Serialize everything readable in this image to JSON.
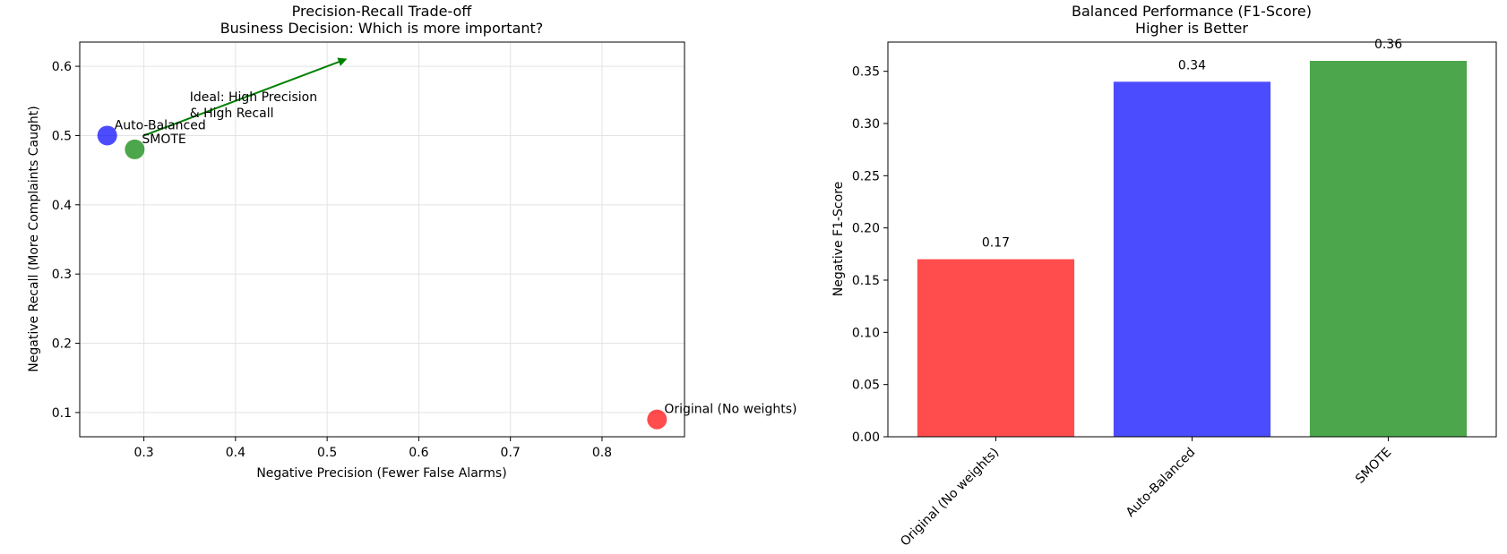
{
  "chart_data": [
    {
      "type": "scatter",
      "title": "Precision-Recall Trade-off",
      "subtitle": "Business Decision: Which is more important?",
      "xlabel": "Negative Precision (Fewer False Alarms)",
      "ylabel": "Negative Recall (More Complaints Caught)",
      "xlim": [
        0.23,
        0.89
      ],
      "ylim": [
        0.065,
        0.635
      ],
      "xticks": [
        "0.3",
        "0.4",
        "0.5",
        "0.6",
        "0.7",
        "0.8"
      ],
      "yticks": [
        "0.1",
        "0.2",
        "0.3",
        "0.4",
        "0.5",
        "0.6"
      ],
      "grid": true,
      "points": [
        {
          "label": "Original (No weights)",
          "x": 0.86,
          "y": 0.09,
          "color": "#ff0000"
        },
        {
          "label": "Auto-Balanced",
          "x": 0.26,
          "y": 0.5,
          "color": "#0000ff"
        },
        {
          "label": "SMOTE",
          "x": 0.29,
          "y": 0.48,
          "color": "#008000"
        }
      ],
      "annotation": {
        "line1": "Ideal: High Precision",
        "line2": "& High Recall",
        "color": "#008000",
        "arrow_from": [
          0.3,
          0.5
        ],
        "arrow_to": [
          0.52,
          0.61
        ]
      }
    },
    {
      "type": "bar",
      "title": "Balanced Performance (F1-Score)",
      "subtitle": "Higher is Better",
      "xlabel": "",
      "ylabel": "Negative F1-Score",
      "categories": [
        "Original (No weights)",
        "Auto-Balanced",
        "SMOTE"
      ],
      "values": [
        0.17,
        0.34,
        0.36
      ],
      "value_labels": [
        "0.17",
        "0.34",
        "0.36"
      ],
      "colors": [
        "#ff0000",
        "#0000ff",
        "#008000"
      ],
      "ylim": [
        0,
        0.378
      ],
      "yticks": [
        "0.00",
        "0.05",
        "0.10",
        "0.15",
        "0.20",
        "0.25",
        "0.30",
        "0.35"
      ],
      "grid": false
    }
  ]
}
